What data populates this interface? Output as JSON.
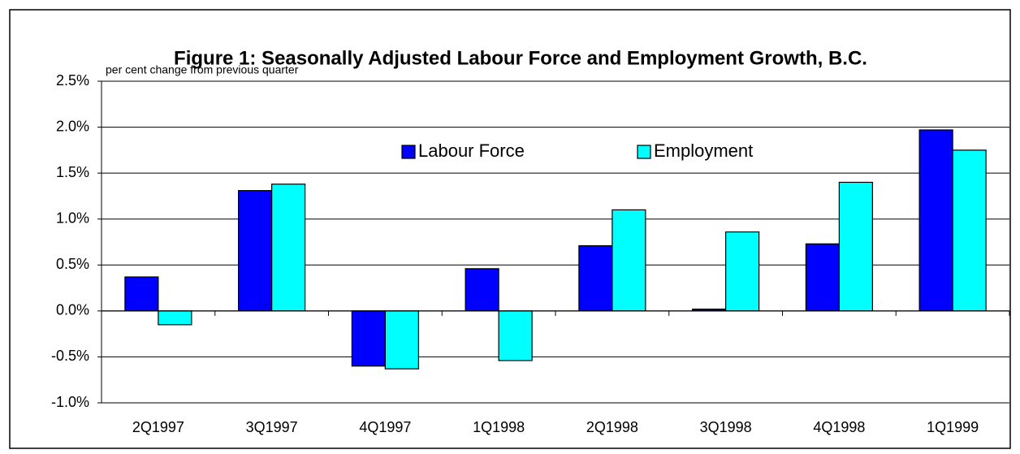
{
  "chart_data": {
    "type": "bar",
    "title": "Figure 1:  Seasonally Adjusted Labour Force and Employment Growth, B.C.",
    "subtitle": "per cent change from previous quarter",
    "categories": [
      "2Q1997",
      "3Q1997",
      "4Q1997",
      "1Q1998",
      "2Q1998",
      "3Q1998",
      "4Q1998",
      "1Q1999"
    ],
    "series": [
      {
        "name": "Labour Force",
        "color": "#0000ff",
        "values": [
          0.37,
          1.31,
          -0.6,
          0.46,
          0.71,
          0.02,
          0.73,
          1.97
        ]
      },
      {
        "name": "Employment",
        "color": "#00ffff",
        "values": [
          -0.15,
          1.38,
          -0.63,
          -0.54,
          1.1,
          0.86,
          1.4,
          1.75
        ]
      }
    ],
    "ylim": [
      -1.0,
      2.5
    ],
    "yticks": [
      {
        "value": -1.0,
        "label": "-1.0%"
      },
      {
        "value": -0.5,
        "label": "-0.5%"
      },
      {
        "value": 0.0,
        "label": "0.0%"
      },
      {
        "value": 0.5,
        "label": "0.5%"
      },
      {
        "value": 1.0,
        "label": "1.0%"
      },
      {
        "value": 1.5,
        "label": "1.5%"
      },
      {
        "value": 2.0,
        "label": "2.0%"
      },
      {
        "value": 2.5,
        "label": "2.5%"
      }
    ],
    "grid": true,
    "legend": "top"
  }
}
